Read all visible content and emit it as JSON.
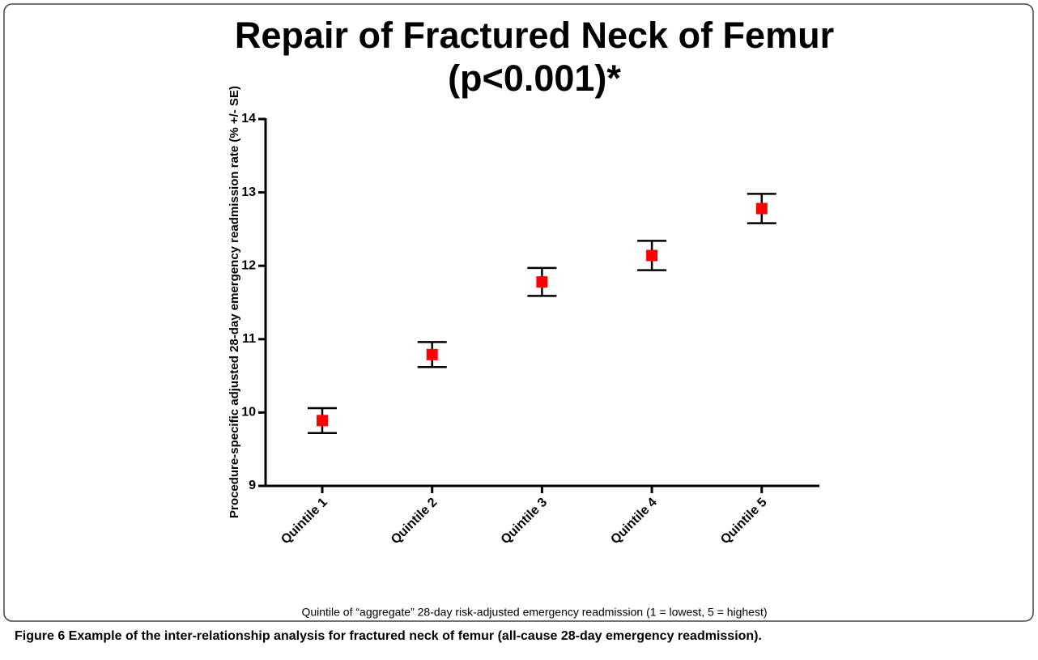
{
  "chart_data": {
    "type": "errorbar",
    "title": "Repair of Fractured Neck of Femur",
    "subtitle": "(p<0.001)*",
    "ylabel": "Procedure-specific adjusted 28-day emergency readmission rate (% +/- SE)",
    "xlabel": "Quintile of “aggregate” 28-day risk-adjusted emergency readmission (1 = lowest, 5 = highest)",
    "categories": [
      "Quintile 1",
      "Quintile 2",
      "Quintile 3",
      "Quintile 4",
      "Quintile 5"
    ],
    "values": [
      9.89,
      10.79,
      11.78,
      12.14,
      12.78
    ],
    "errors": [
      0.17,
      0.17,
      0.19,
      0.2,
      0.2
    ],
    "color": "#ff0000",
    "ylim": [
      9,
      14
    ],
    "yticks": [
      9,
      10,
      11,
      12,
      13,
      14
    ]
  },
  "caption": "Figure 6 Example of the inter-relationship analysis for fractured neck of femur (all-cause 28-day emergency readmission)."
}
